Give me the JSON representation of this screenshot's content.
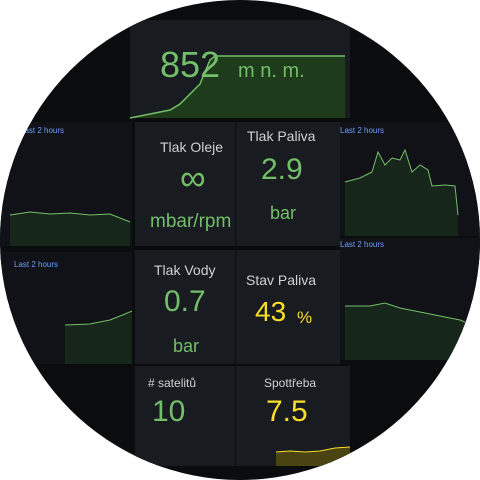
{
  "altitude": {
    "value": 852,
    "unit": "m n. m."
  },
  "time_ranges": [
    "Last 2 hours",
    "Last 2 hours",
    "Last 2 hours",
    "Last 2 hours"
  ],
  "stats": [
    {
      "label": "Tlak Oleje",
      "value": "∞",
      "unit": "mbar/rpm"
    },
    {
      "label": "Tlak Paliva",
      "value": 2.9,
      "unit": "bar"
    },
    {
      "label": "Tlak Vody",
      "value": 0.7,
      "unit": "bar"
    },
    {
      "label": "Stav Paliva",
      "value": 43,
      "unit": "%"
    },
    {
      "label": "# satelitů",
      "value": 10
    },
    {
      "label": "Spottřeba",
      "value": 7.5
    }
  ]
}
